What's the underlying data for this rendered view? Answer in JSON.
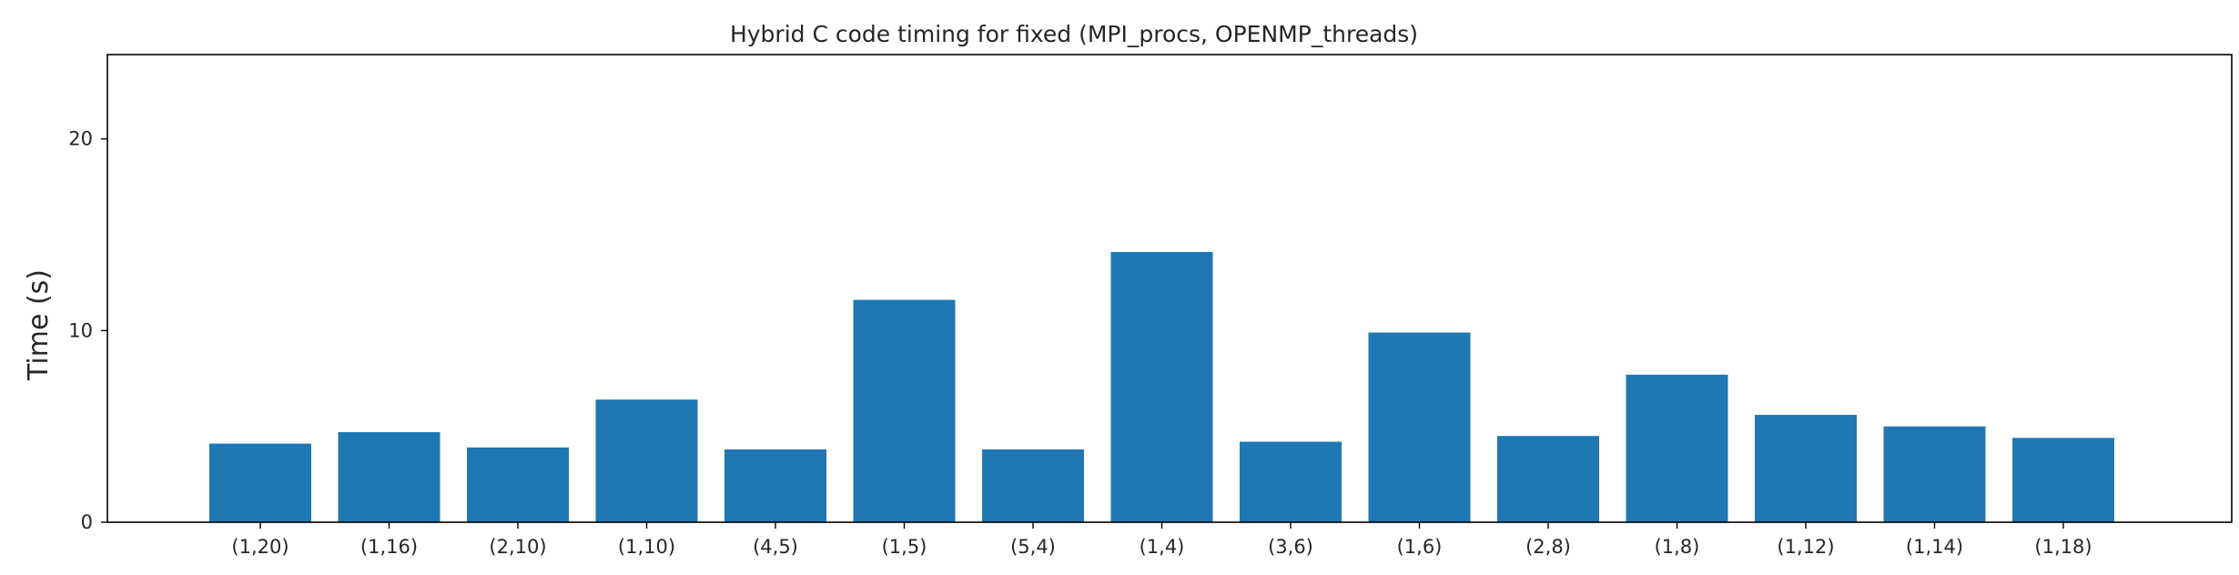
{
  "chart_data": {
    "type": "bar",
    "title": "Hybrid C code timing for fixed (MPI_procs, OPENMP_threads)",
    "xlabel": "",
    "ylabel": "Time (s)",
    "categories": [
      "(1,20)",
      "(1,16)",
      "(2,10)",
      "(1,10)",
      "(4,5)",
      "(1,5)",
      "(5,4)",
      "(1,4)",
      "(3,6)",
      "(1,6)",
      "(2,8)",
      "(1,8)",
      "(1,12)",
      "(1,14)",
      "(1,18)"
    ],
    "values": [
      4.1,
      4.7,
      3.9,
      6.4,
      3.8,
      11.6,
      3.8,
      14.1,
      4.2,
      9.9,
      4.5,
      7.7,
      5.6,
      5.0,
      4.4
    ],
    "ylim": [
      0,
      24.4
    ],
    "yticks": [
      0,
      10,
      20
    ],
    "bar_color": "#1f77b4",
    "grid": false,
    "legend": "none"
  }
}
